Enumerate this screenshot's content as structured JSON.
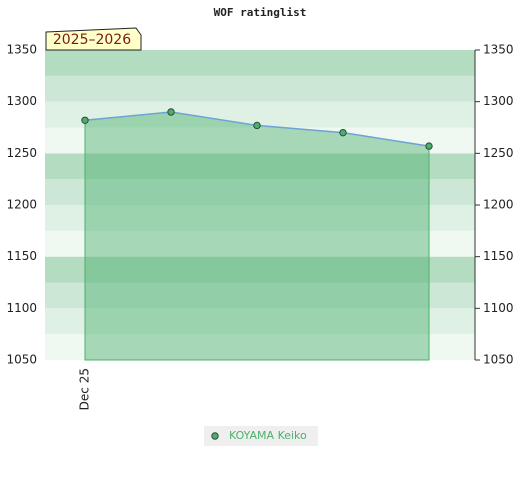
{
  "chart_data": {
    "type": "area",
    "title": "WOF ratinglist",
    "annotation": "2025–2026",
    "categories": [
      "Dec 25",
      null,
      null,
      null,
      null
    ],
    "series": [
      {
        "name": "KOYAMA Keiko",
        "color": "#4caf6e",
        "line_color": "#6fa3d8",
        "values": [
          1282,
          1290,
          1277,
          1270,
          1257
        ]
      }
    ],
    "ylim": [
      1050,
      1350
    ],
    "yticks": [
      1050,
      1100,
      1150,
      1200,
      1250,
      1300,
      1350
    ],
    "right_axis": true
  }
}
